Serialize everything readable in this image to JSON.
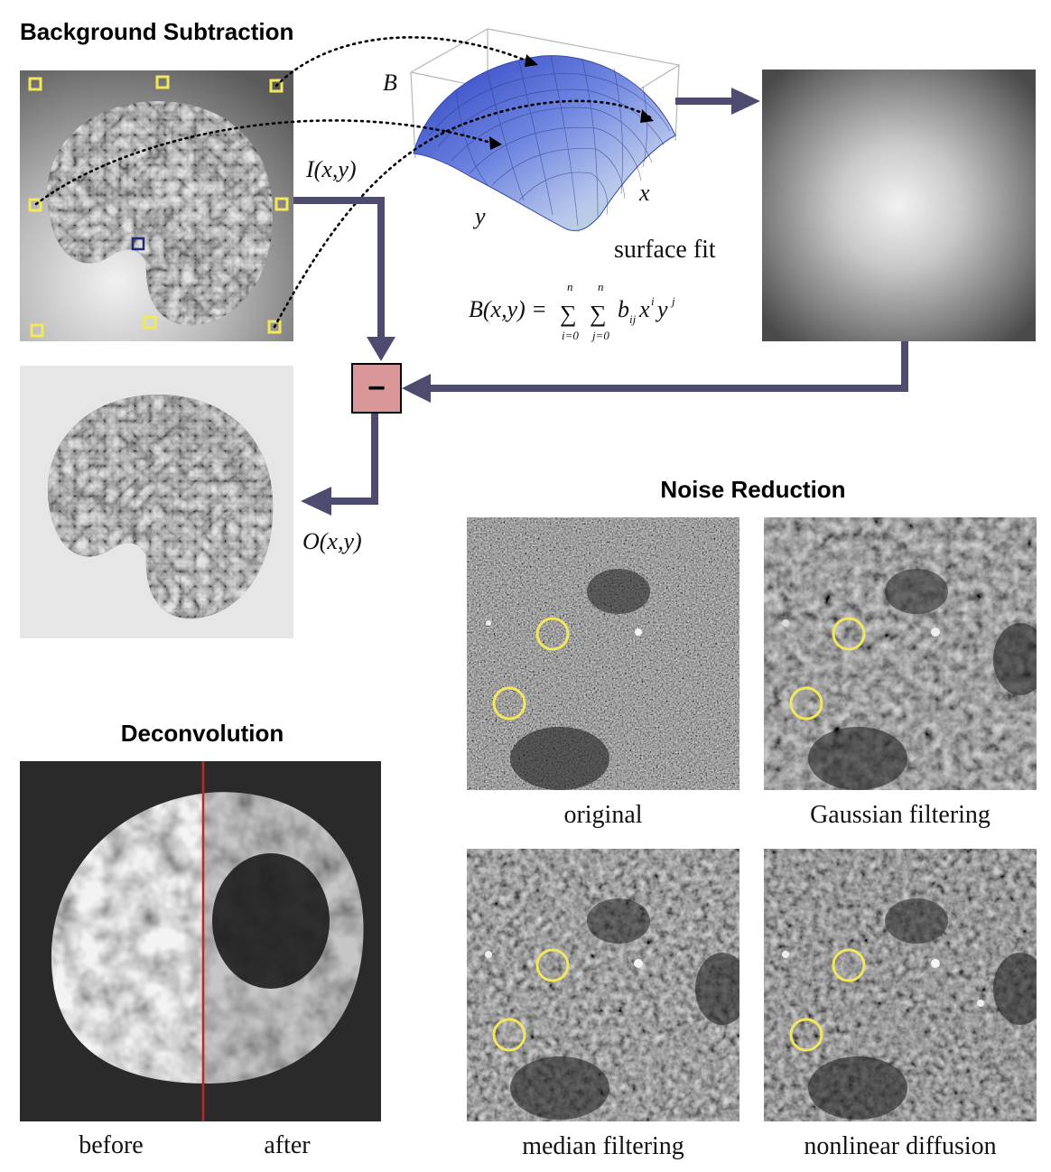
{
  "sections": {
    "background_subtraction": "Background Subtraction",
    "noise_reduction": "Noise Reduction",
    "deconvolution": "Deconvolution"
  },
  "background": {
    "input_label": "I(x,y)",
    "output_label": "O(x,y)",
    "surface_fit_label": "surface fit",
    "axis_b": "B",
    "axis_x": "x",
    "axis_y": "y",
    "minus_symbol": "−",
    "formula": {
      "lhs": "B(x,y) =",
      "sum1_upper": "n",
      "sum1_lower": "i=0",
      "sum2_upper": "n",
      "sum2_lower": "j=0",
      "term_b": "b",
      "term_b_sub": "ij",
      "term_x": "x",
      "term_x_sup": "i",
      "term_y": "y",
      "term_y_sup": "j"
    }
  },
  "noise_reduction": {
    "panels": [
      {
        "caption": "original"
      },
      {
        "caption": "Gaussian filtering"
      },
      {
        "caption": "median filtering"
      },
      {
        "caption": "nonlinear diffusion"
      }
    ]
  },
  "deconvolution": {
    "before_label": "before",
    "after_label": "after"
  },
  "colors": {
    "flow_arrow": "#4e4b70",
    "minus_box": "#d9979a",
    "marker_yellow": "#f2e85a",
    "marker_blue": "#1f2a78",
    "divider_red": "#c0262a"
  }
}
